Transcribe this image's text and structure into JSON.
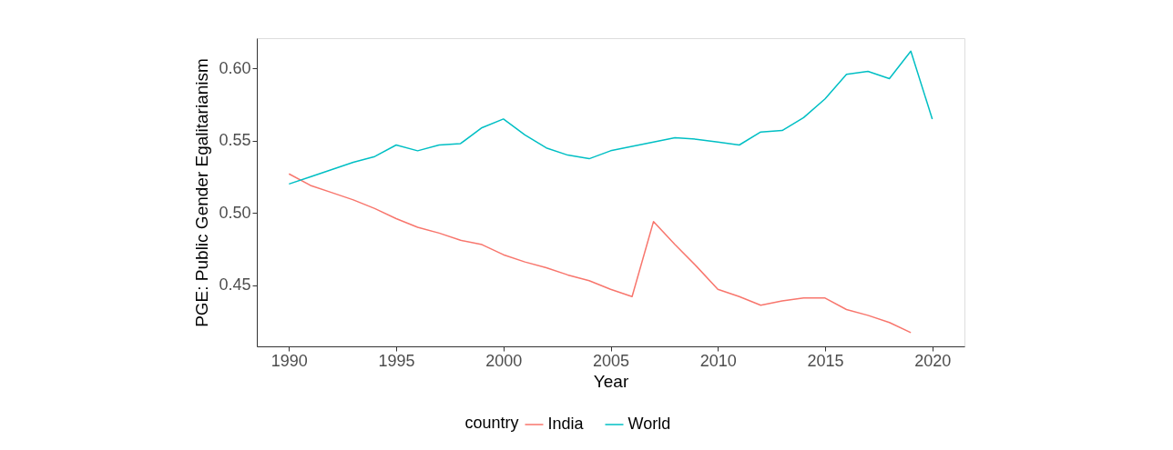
{
  "chart_data": {
    "type": "line",
    "xlabel": "Year",
    "ylabel": "PGE: Public Gender Egalitarianism",
    "legend_title": "country",
    "legend": "bottom",
    "grid": false,
    "line_style": "solid",
    "marker": "none",
    "xlim": [
      1988.5,
      2021.5
    ],
    "xticks": [
      1990,
      1995,
      2000,
      2005,
      2010,
      2015,
      2020
    ],
    "ylim": [
      0.4075,
      0.621
    ],
    "yticks": [
      {
        "value": 0.45,
        "label": "0.45"
      },
      {
        "value": 0.5,
        "label": "0.50"
      },
      {
        "value": 0.55,
        "label": "0.55"
      },
      {
        "value": 0.6,
        "label": "0.60"
      }
    ],
    "series": [
      {
        "name": "India",
        "color": "#f8766d",
        "x": [
          1990,
          1991,
          1992,
          1993,
          1994,
          1995,
          1996,
          1997,
          1998,
          1999,
          2000,
          2001,
          2002,
          2003,
          2004,
          2005,
          2006,
          2007,
          2008,
          2009,
          2010,
          2011,
          2012,
          2013,
          2014,
          2015,
          2016,
          2017,
          2018,
          2019
        ],
        "values": [
          0.527,
          0.519,
          0.514,
          0.509,
          0.503,
          0.496,
          0.49,
          0.486,
          0.481,
          0.478,
          0.471,
          0.466,
          0.462,
          0.457,
          0.453,
          0.447,
          0.442,
          0.494,
          0.478,
          0.463,
          0.447,
          0.442,
          0.436,
          0.439,
          0.441,
          0.441,
          0.433,
          0.429,
          0.424,
          0.417
        ]
      },
      {
        "name": "World",
        "color": "#00bfc4",
        "x": [
          1990,
          1991,
          1992,
          1993,
          1994,
          1995,
          1996,
          1997,
          1998,
          1999,
          2000,
          2001,
          2002,
          2003,
          2004,
          2005,
          2006,
          2007,
          2008,
          2009,
          2010,
          2011,
          2012,
          2013,
          2014,
          2015,
          2016,
          2017,
          2018,
          2019,
          2020
        ],
        "values": [
          0.52,
          0.525,
          0.53,
          0.535,
          0.539,
          0.547,
          0.543,
          0.547,
          0.548,
          0.559,
          0.565,
          0.554,
          0.545,
          0.54,
          0.5375,
          0.543,
          0.546,
          0.549,
          0.552,
          0.551,
          0.549,
          0.547,
          0.556,
          0.557,
          0.566,
          0.579,
          0.596,
          0.598,
          0.593,
          0.612,
          0.565
        ]
      }
    ]
  }
}
